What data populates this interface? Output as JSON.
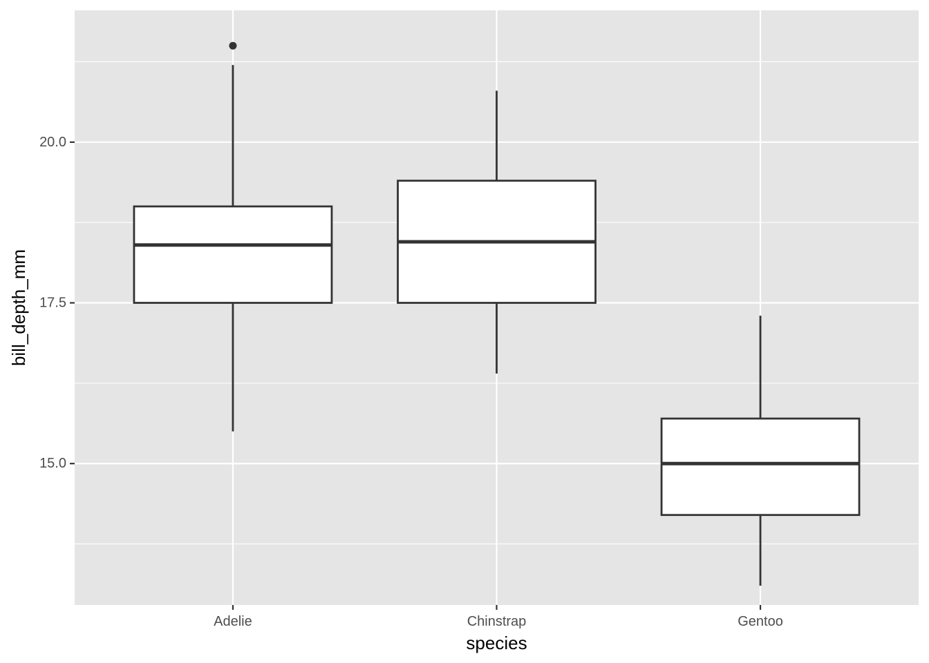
{
  "chart_data": {
    "type": "boxplot",
    "xlabel": "species",
    "ylabel": "bill_depth_mm",
    "categories": [
      "Adelie",
      "Chinstrap",
      "Gentoo"
    ],
    "ylim": [
      12.8,
      22.05
    ],
    "y_ticks": [
      15.0,
      17.5,
      20.0
    ],
    "y_tick_labels": [
      "15.0",
      "17.5",
      "20.0"
    ],
    "y_minor_ticks": [
      13.75,
      16.25,
      18.75,
      21.25
    ],
    "grid": true,
    "legend": "none",
    "boxes": [
      {
        "category": "Adelie",
        "whisker_low": 15.5,
        "q1": 17.5,
        "median": 18.4,
        "q3": 19.0,
        "whisker_high": 21.2,
        "outliers": [
          21.5
        ]
      },
      {
        "category": "Chinstrap",
        "whisker_low": 16.4,
        "q1": 17.5,
        "median": 18.45,
        "q3": 19.4,
        "whisker_high": 20.8,
        "outliers": []
      },
      {
        "category": "Gentoo",
        "whisker_low": 13.1,
        "q1": 14.2,
        "median": 15.0,
        "q3": 15.7,
        "whisker_high": 17.3,
        "outliers": []
      }
    ],
    "colors": {
      "panel_background": "#e5e5e5",
      "grid_line": "#ffffff",
      "box_fill": "#ffffff",
      "box_stroke": "#333333",
      "tick_text": "#4d4d4d",
      "axis_title": "#000000",
      "outlier": "#333333"
    }
  }
}
